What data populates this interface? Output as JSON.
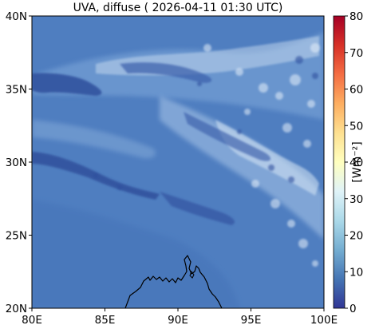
{
  "title": "UVA, diffuse ( 2026-04-11 01:30 UTC)",
  "map": {
    "lon_range": [
      80,
      100
    ],
    "lat_range": [
      20,
      40
    ],
    "x_ticks": [
      "80E",
      "85E",
      "90E",
      "95E",
      "100E"
    ],
    "y_ticks": [
      "20N",
      "25N",
      "30N",
      "35N",
      "40N"
    ],
    "background_color": "#4f7ec0",
    "coastline_color": "#000000"
  },
  "colorbar": {
    "label": "[Wm⁻²]",
    "ticks": [
      "0",
      "10",
      "20",
      "30",
      "40",
      "50",
      "60",
      "70",
      "80"
    ],
    "range": [
      0,
      80
    ],
    "colors": [
      "#313695",
      "#4575b4",
      "#74add1",
      "#abd9e9",
      "#e0f3f8",
      "#ffffbf",
      "#fee090",
      "#fdae61",
      "#f46d43",
      "#d73027",
      "#a50026"
    ]
  }
}
